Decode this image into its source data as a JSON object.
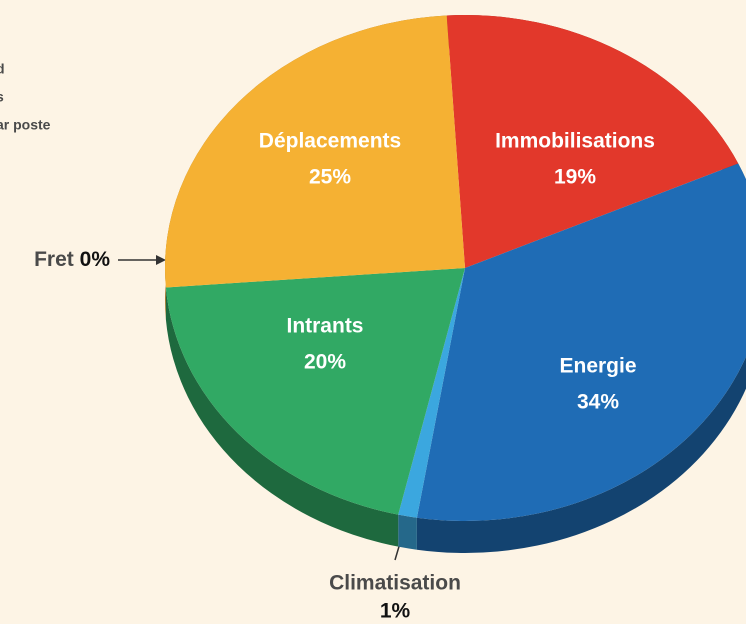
{
  "chart_data": {
    "type": "pie",
    "title_lines": [
      "d",
      "s",
      "ar poste"
    ],
    "categories": [
      "Immobilisations",
      "Energie",
      "Climatisation",
      "Intrants",
      "Fret",
      "Déplacements"
    ],
    "values": [
      19,
      34,
      1,
      20,
      0,
      25
    ],
    "value_labels": [
      "19%",
      "34%",
      "1%",
      "20%",
      "0%",
      "25%"
    ],
    "colors": [
      "#e2382b",
      "#1f6cb5",
      "#3ba7df",
      "#31a964",
      "#a0701f",
      "#f5b133"
    ]
  }
}
